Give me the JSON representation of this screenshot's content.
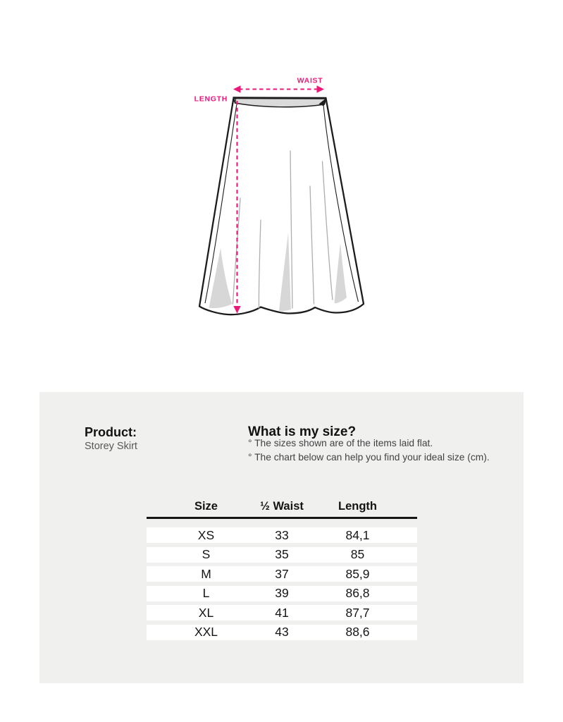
{
  "illustration": {
    "waist_label": "WAIST",
    "length_label": "LENGTH",
    "accent_color": "#EC1879",
    "outline_color": "#1c1c1c",
    "shading_color": "#d7d7d7"
  },
  "panel": {
    "background_color": "#f0f0ee",
    "product_heading": "Product:",
    "product_name": "Storey Skirt",
    "size_heading": "What is my size?",
    "notes": [
      "° The sizes shown are of the items laid flat.",
      "° The chart below can help you find your ideal size (cm)."
    ]
  },
  "size_table": {
    "type": "table",
    "columns": [
      "Size",
      "½ Waist",
      "Length"
    ],
    "rows": [
      [
        "XS",
        "33",
        "84,1"
      ],
      [
        "S",
        "35",
        "85"
      ],
      [
        "M",
        "37",
        "85,9"
      ],
      [
        "L",
        "39",
        "86,8"
      ],
      [
        "XL",
        "41",
        "87,7"
      ],
      [
        "XXL",
        "43",
        "88,6"
      ]
    ]
  }
}
